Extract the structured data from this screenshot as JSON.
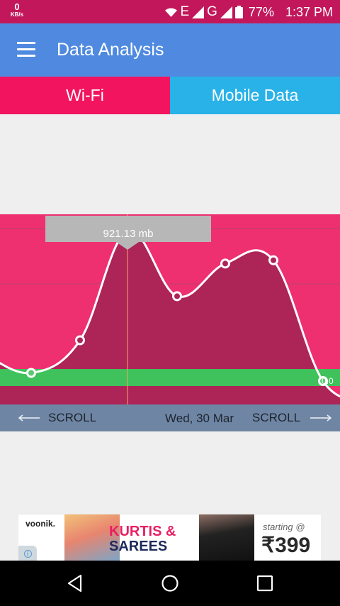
{
  "status_bar": {
    "speed_value": "0",
    "speed_unit": "KB/s",
    "network_type_1": "E",
    "network_type_2": "G",
    "battery": "77%",
    "time": "1:37 PM"
  },
  "app_bar": {
    "title": "Data Analysis"
  },
  "tabs": [
    {
      "label": "Wi-Fi",
      "selected": true
    },
    {
      "label": "Mobile Data",
      "selected": false
    }
  ],
  "chart": {
    "tooltip": "921.13 mb",
    "zero_label": "0.0",
    "colors": {
      "background": "#ee2f70",
      "fill": "#ad2457",
      "band": "#3fc15b",
      "line": "#ffffff",
      "cursor": "#f7a36a",
      "gridline": "#b8406e"
    }
  },
  "chart_data": {
    "type": "area",
    "tooltip_value": "921.13 mb",
    "x_label": "Wed, 30 Mar",
    "series": [
      {
        "values": [
          0.05,
          0.25,
          0.92,
          0.52,
          0.72,
          0.74,
          0.0
        ]
      }
    ]
  },
  "scroll_bar": {
    "left_label": "SCROLL",
    "date": "Wed, 30 Mar",
    "right_label": "SCROLL"
  },
  "ad": {
    "brand": "voonik.",
    "headline_1": "KURTIS &",
    "headline_2": "SAREES",
    "starting": "starting @",
    "price": "₹399",
    "info_icon": "i"
  },
  "nav_bar": {
    "icons": [
      "back-icon",
      "home-icon",
      "recents-icon"
    ]
  }
}
